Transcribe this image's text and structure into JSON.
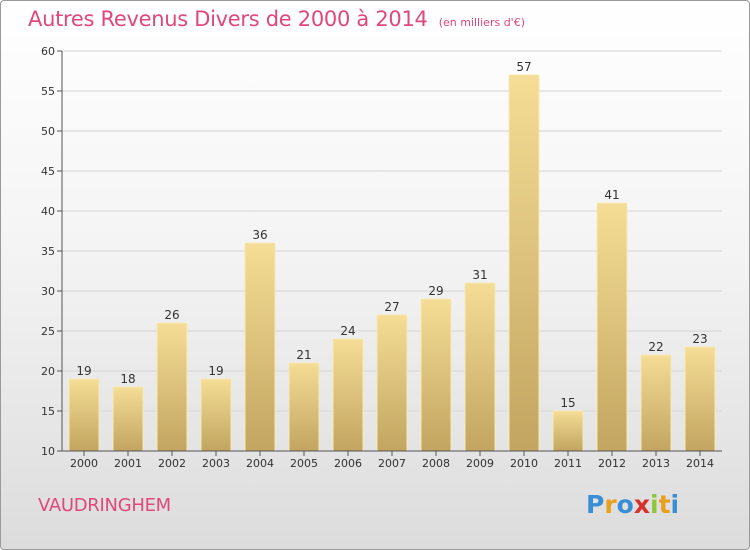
{
  "header": {
    "title": "Autres Revenus Divers de 2000 à 2014",
    "subtitle": "(en milliers d'€)"
  },
  "footer": {
    "commune": "VAUDRINGHEM",
    "logo": {
      "letters": [
        "P",
        "r",
        "o",
        "x",
        "i",
        "t",
        "i"
      ],
      "colors": [
        "#3a8ed6",
        "#e9a01f",
        "#3a8ed6",
        "#d9302b",
        "#8ec63f",
        "#e9a01f",
        "#3a8ed6"
      ]
    }
  },
  "chart_data": {
    "type": "bar",
    "categories": [
      "2000",
      "2001",
      "2002",
      "2003",
      "2004",
      "2005",
      "2006",
      "2007",
      "2008",
      "2009",
      "2010",
      "2011",
      "2012",
      "2013",
      "2014"
    ],
    "values": [
      19,
      18,
      26,
      19,
      36,
      21,
      24,
      27,
      29,
      31,
      57,
      15,
      41,
      22,
      23
    ],
    "ylim": [
      10,
      60
    ],
    "yticks": [
      10,
      15,
      20,
      25,
      30,
      35,
      40,
      45,
      50,
      55,
      60
    ],
    "grid": true,
    "bar_color": "#e6cd86"
  }
}
